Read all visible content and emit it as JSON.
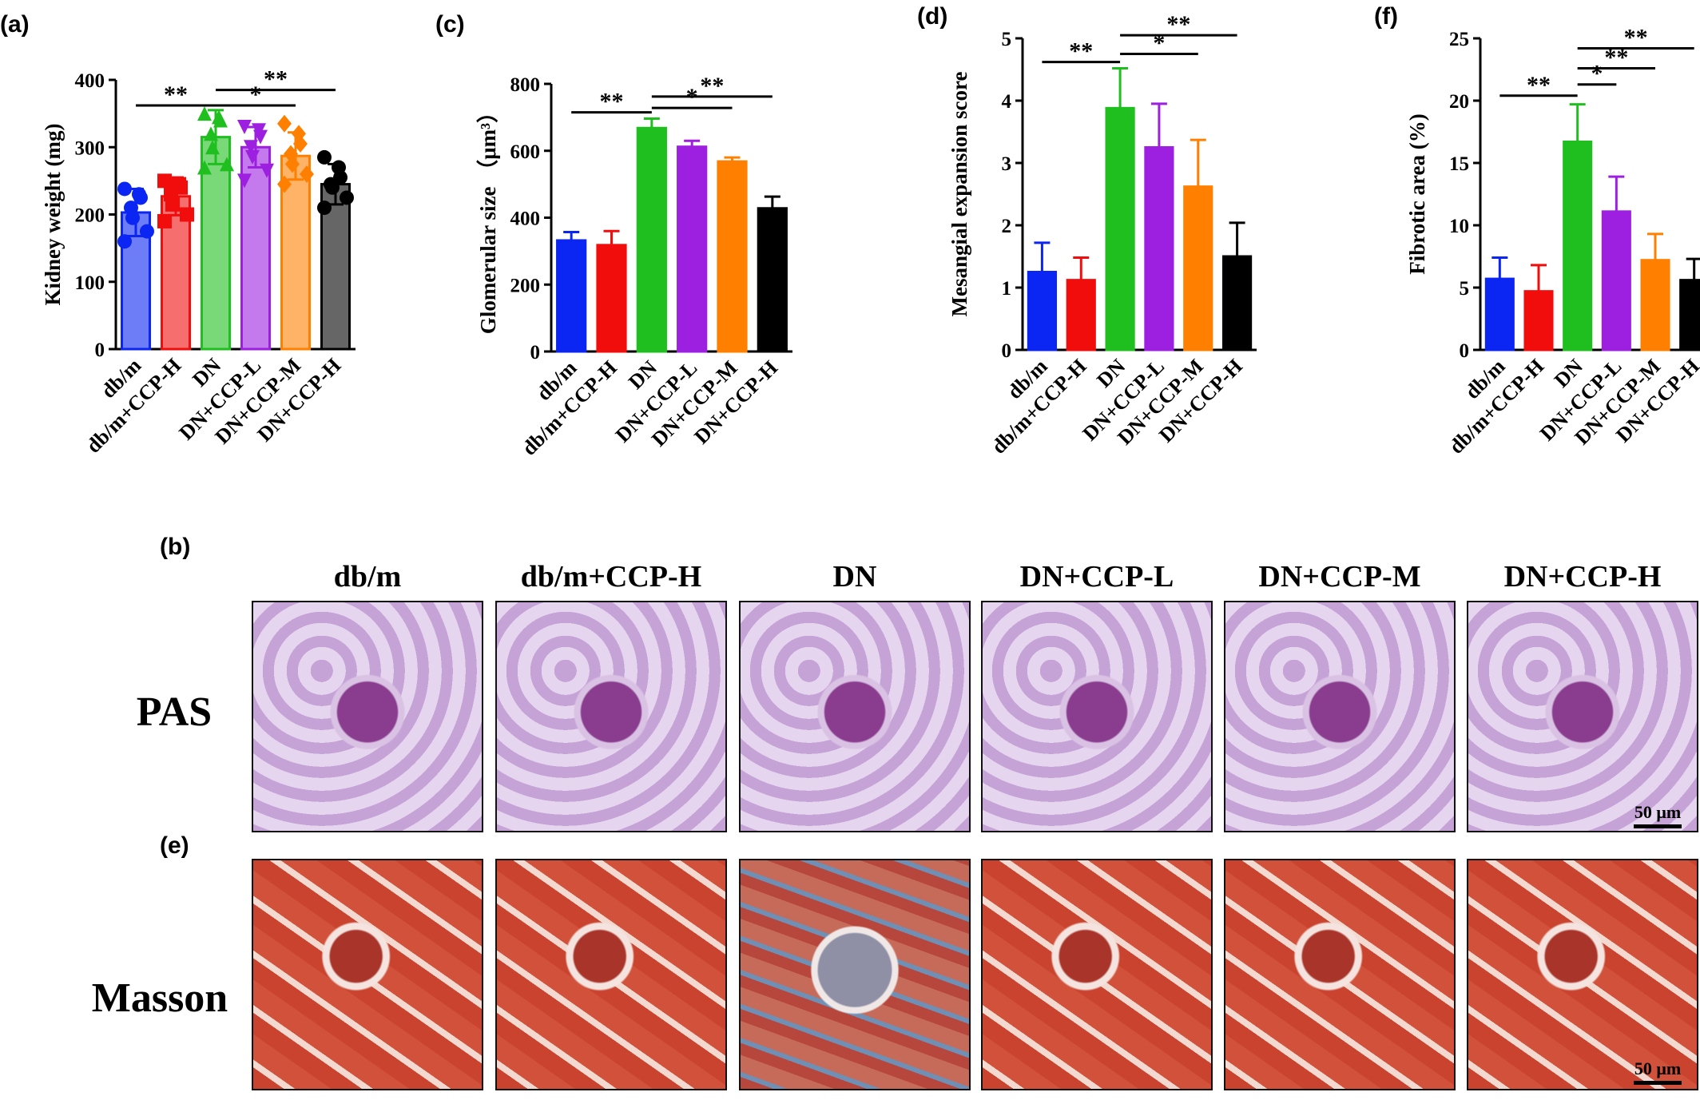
{
  "chart_data": [
    {
      "id": "a",
      "type": "bar",
      "panel_label": "(a)",
      "ylabel": "Kidney weight (mg)",
      "ylim": [
        0,
        400
      ],
      "yticks": [
        "0",
        "100",
        "200",
        "300",
        "400"
      ],
      "categories": [
        "db/m",
        "db/m+CCP-H",
        "DN",
        "DN+CCP-L",
        "DN+CCP-M",
        "DN+CCP-H"
      ],
      "values": [
        203,
        227,
        315,
        300,
        287,
        245
      ],
      "errors": [
        35,
        28,
        40,
        30,
        35,
        30
      ],
      "points": [
        [
          238,
          230,
          225,
          210,
          195,
          175,
          160
        ],
        [
          250,
          245,
          240,
          230,
          215,
          200,
          190
        ],
        [
          350,
          345,
          340,
          320,
          300,
          275,
          270
        ],
        [
          330,
          325,
          315,
          300,
          285,
          265,
          250
        ],
        [
          335,
          320,
          305,
          290,
          275,
          260,
          245
        ],
        [
          285,
          270,
          255,
          245,
          240,
          225,
          210
        ]
      ],
      "significance": [
        {
          "from": 0,
          "to": 2,
          "label": "**",
          "y": 362
        },
        {
          "from": 2,
          "to": 5,
          "label": "**",
          "y": 385
        },
        {
          "from": 2,
          "to": 4,
          "label": "*",
          "y": 362
        }
      ],
      "hollow": true
    },
    {
      "id": "c",
      "type": "bar",
      "panel_label": "(c)",
      "ylabel": "Glomerular size （μm³）",
      "ylim": [
        0,
        800
      ],
      "yticks": [
        "0",
        "200",
        "400",
        "600",
        "800"
      ],
      "categories": [
        "db/m",
        "db/m+CCP-H",
        "DN",
        "DN+CCP-L",
        "DN+CCP-M",
        "DN+CCP-H"
      ],
      "values": [
        332,
        318,
        668,
        612,
        568,
        428
      ],
      "errors": [
        25,
        42,
        28,
        18,
        12,
        35
      ],
      "significance": [
        {
          "from": 0,
          "to": 2,
          "label": "**",
          "y": 715
        },
        {
          "from": 2,
          "to": 5,
          "label": "**",
          "y": 762
        },
        {
          "from": 2,
          "to": 4,
          "label": "*",
          "y": 728
        }
      ],
      "hollow": false
    },
    {
      "id": "d",
      "type": "bar",
      "panel_label": "(d)",
      "ylabel": "Mesangial expansion score",
      "ylim": [
        0,
        5
      ],
      "yticks": [
        "0",
        "1",
        "2",
        "3",
        "4",
        "5"
      ],
      "categories": [
        "db/m",
        "db/m+CCP-H",
        "DN",
        "DN+CCP-L",
        "DN+CCP-M",
        "DN+CCP-H"
      ],
      "values": [
        1.25,
        1.12,
        3.88,
        3.25,
        2.62,
        1.5
      ],
      "errors": [
        0.47,
        0.36,
        0.64,
        0.7,
        0.75,
        0.54
      ],
      "significance": [
        {
          "from": 0,
          "to": 2,
          "label": "**",
          "y": 4.62
        },
        {
          "from": 2,
          "to": 5,
          "label": "**",
          "y": 5.05
        },
        {
          "from": 2,
          "to": 4,
          "label": "*",
          "y": 4.75
        }
      ],
      "hollow": false
    },
    {
      "id": "f",
      "type": "bar",
      "panel_label": "(f)",
      "ylabel": "Fibrotic area (%)",
      "ylim": [
        0,
        25
      ],
      "yticks": [
        "0",
        "5",
        "10",
        "15",
        "20",
        "25"
      ],
      "categories": [
        "db/m",
        "db/m+CCP-H",
        "DN",
        "DN+CCP-L",
        "DN+CCP-M",
        "DN+CCP-H"
      ],
      "values": [
        5.7,
        4.7,
        16.7,
        11.1,
        7.2,
        5.6
      ],
      "errors": [
        1.7,
        2.1,
        3.0,
        2.8,
        2.1,
        1.7
      ],
      "significance": [
        {
          "from": 0,
          "to": 2,
          "label": "**",
          "y": 20.4
        },
        {
          "from": 2,
          "to": 5,
          "label": "**",
          "y": 24.2
        },
        {
          "from": 2,
          "to": 4,
          "label": "**",
          "y": 22.6
        },
        {
          "from": 2,
          "to": 3,
          "label": "*",
          "y": 21.3
        }
      ],
      "hollow": false
    }
  ],
  "colors": [
    "#0b25f2",
    "#f20d0d",
    "#1fbf1f",
    "#9d1fe0",
    "#ff8000",
    "#000000"
  ],
  "micro": {
    "panel_b": "(b)",
    "panel_e": "(e)",
    "columns": [
      "db/m",
      "db/m+CCP-H",
      "DN",
      "DN+CCP-L",
      "DN+CCP-M",
      "DN+CCP-H"
    ],
    "rows": [
      "PAS",
      "Masson"
    ],
    "scale_label_1": "50 μm",
    "scale_label_2": "50 μm"
  }
}
